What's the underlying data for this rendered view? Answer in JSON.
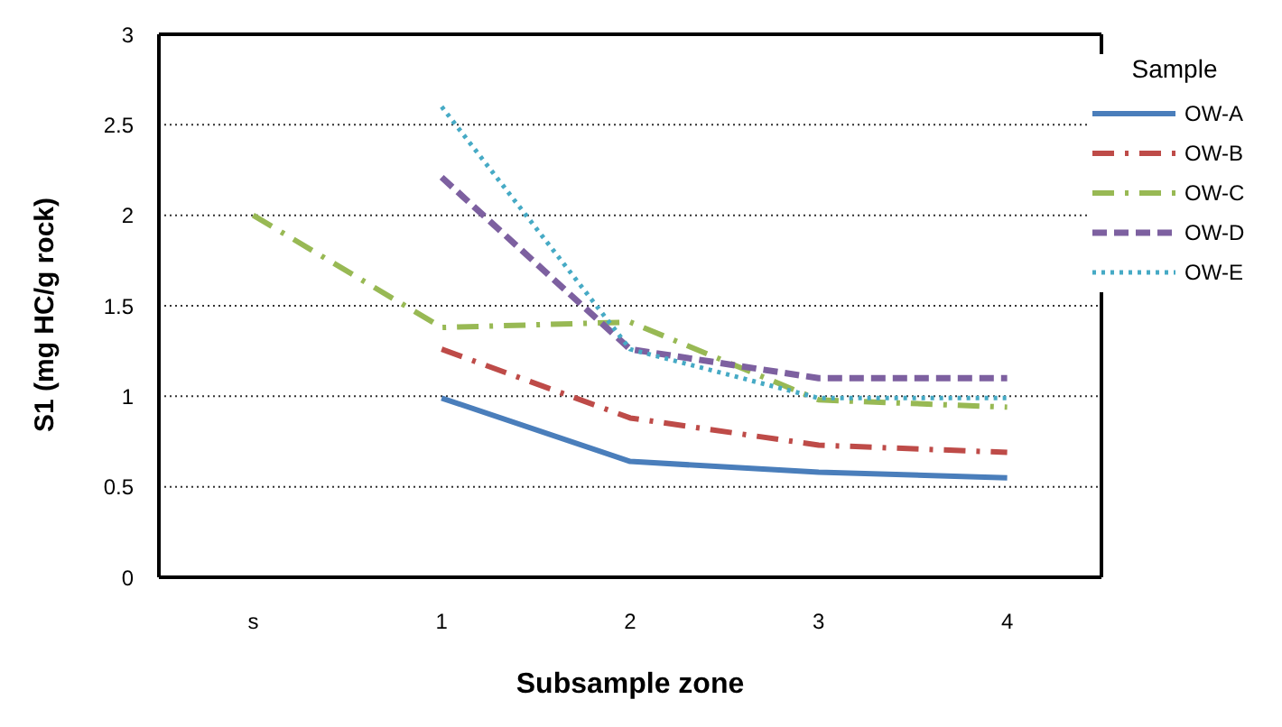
{
  "chart_data": {
    "type": "line",
    "xlabel": "Subsample zone",
    "ylabel": "S1 (mg HC/g rock)",
    "legend_title": "Sample",
    "categories": [
      "s",
      "1",
      "2",
      "3",
      "4"
    ],
    "series": [
      {
        "name": "OW-A",
        "color": "#4a7ebb",
        "line_style": "solid",
        "values": [
          null,
          0.99,
          0.64,
          0.58,
          0.55
        ]
      },
      {
        "name": "OW-B",
        "color": "#be4b48",
        "line_style": "dashdot",
        "values": [
          null,
          1.26,
          0.88,
          0.73,
          0.69
        ]
      },
      {
        "name": "OW-C",
        "color": "#98b954",
        "line_style": "dashdot",
        "values": [
          2.0,
          1.38,
          1.41,
          0.98,
          0.94
        ]
      },
      {
        "name": "OW-D",
        "color": "#7d60a0",
        "line_style": "dashed",
        "values": [
          null,
          2.21,
          1.26,
          1.1,
          1.1
        ]
      },
      {
        "name": "OW-E",
        "color": "#46aac5",
        "line_style": "dotted",
        "values": [
          null,
          2.6,
          1.26,
          0.99,
          0.99
        ]
      }
    ],
    "ylim": [
      0,
      3
    ],
    "yticks": [
      0,
      0.5,
      1,
      1.5,
      2,
      2.5,
      3
    ],
    "grid": "y",
    "legend": "top right",
    "marker": "none"
  }
}
